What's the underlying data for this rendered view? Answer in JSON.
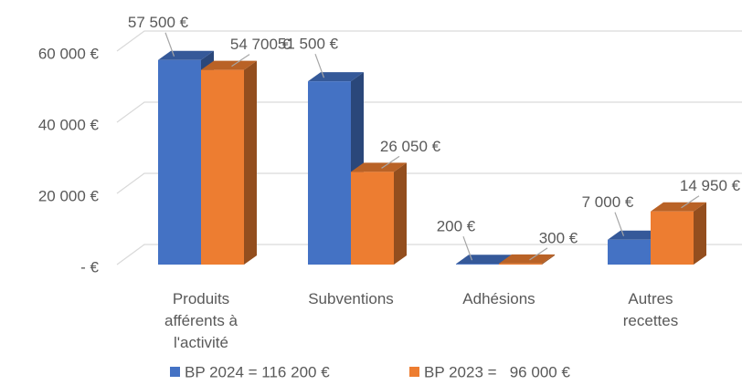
{
  "chart_data": {
    "type": "bar3d",
    "categories": [
      "Produits afférents à l'activité",
      "Subventions",
      "Adhésions",
      "Autres recettes"
    ],
    "series": [
      {
        "name": "BP 2024 = 116 200 €",
        "color": "#4472c4",
        "values": [
          57500,
          51500,
          200,
          7000
        ],
        "value_labels": [
          "57 500 €",
          "51 500 €",
          "200 €",
          "7 000 €"
        ]
      },
      {
        "name": "BP 2023 =   96 000 €",
        "color": "#ed7d31",
        "values": [
          54700,
          26050,
          300,
          14950
        ],
        "value_labels": [
          "54 700 €",
          "26 050 €",
          "300 €",
          "14 950 €"
        ]
      }
    ],
    "ylim": [
      0,
      60000
    ],
    "yticks": [
      {
        "value": 0,
        "label": "-  €"
      },
      {
        "value": 20000,
        "label": "20 000 €"
      },
      {
        "value": 40000,
        "label": "40 000 €"
      },
      {
        "value": 60000,
        "label": "60 000 €"
      }
    ],
    "grid": true,
    "legend": "bottom"
  }
}
